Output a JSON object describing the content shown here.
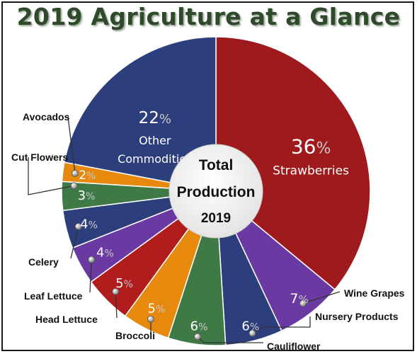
{
  "title": "2019 Agriculture at a Glance",
  "center_label": [
    "Total",
    "Production",
    "2019"
  ],
  "chart_data": {
    "type": "pie",
    "title": "2019 Agriculture at a Glance",
    "unit": "%",
    "slices": [
      {
        "label": "Strawberries",
        "value": 36,
        "color": "#9e1a1c"
      },
      {
        "label": "Wine Grapes",
        "value": 7,
        "color": "#6a3aa2"
      },
      {
        "label": "Nursery Products",
        "value": 6,
        "color": "#2c3f7c"
      },
      {
        "label": "Cauliflower",
        "value": 6,
        "color": "#3f7a46"
      },
      {
        "label": "Broccoli",
        "value": 5,
        "color": "#e6890d"
      },
      {
        "label": "Head Lettuce",
        "value": 5,
        "color": "#b11c1c"
      },
      {
        "label": "Leaf Lettuce",
        "value": 4,
        "color": "#6a3aa2"
      },
      {
        "label": "Celery",
        "value": 4,
        "color": "#2c3f7c"
      },
      {
        "label": "Cut Flowers",
        "value": 3,
        "color": "#3f7a46"
      },
      {
        "label": "Avocados",
        "value": 2,
        "color": "#e6890d"
      },
      {
        "label": "Other Commodities",
        "value": 22,
        "color": "#2c3f7c"
      }
    ]
  }
}
